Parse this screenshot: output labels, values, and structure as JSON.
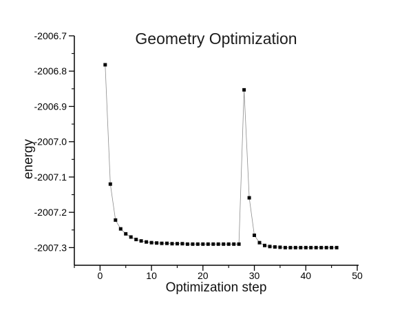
{
  "chart_data": {
    "type": "line",
    "title": "Geometry Optimization",
    "xlabel": "Optimization step",
    "ylabel": "energy",
    "xlim": [
      -5,
      50
    ],
    "ylim": [
      -2007.35,
      -2006.7
    ],
    "grid": false,
    "legend": "none",
    "marker": "filled-square",
    "x_major_ticks": [
      {
        "value": 0,
        "label": "0"
      },
      {
        "value": 10,
        "label": "10"
      },
      {
        "value": 20,
        "label": "20"
      },
      {
        "value": 30,
        "label": "30"
      },
      {
        "value": 40,
        "label": "40"
      },
      {
        "value": 50,
        "label": "50"
      }
    ],
    "x_minor_ticks": [
      -5,
      5,
      15,
      25,
      35,
      45
    ],
    "y_major_ticks": [
      {
        "value": -2006.7,
        "label": "-2006.7"
      },
      {
        "value": -2006.8,
        "label": "-2006.8"
      },
      {
        "value": -2006.9,
        "label": "-2006.9"
      },
      {
        "value": -2007.0,
        "label": "-2007.0"
      },
      {
        "value": -2007.1,
        "label": "-2007.1"
      },
      {
        "value": -2007.2,
        "label": "-2007.2"
      },
      {
        "value": -2007.3,
        "label": "-2007.3"
      }
    ],
    "y_minor_ticks": [
      -2006.75,
      -2006.85,
      -2006.95,
      -2007.05,
      -2007.15,
      -2007.25
    ],
    "series": [
      {
        "name": "energy",
        "x": [
          1,
          2,
          3,
          4,
          5,
          6,
          7,
          8,
          9,
          10,
          11,
          12,
          13,
          14,
          15,
          16,
          17,
          18,
          19,
          20,
          21,
          22,
          23,
          24,
          25,
          26,
          27,
          28,
          29,
          30,
          31,
          32,
          33,
          34,
          35,
          36,
          37,
          38,
          39,
          40,
          41,
          42,
          43,
          44,
          45,
          46
        ],
        "values": [
          -2006.782,
          -2007.12,
          -2007.222,
          -2007.247,
          -2007.261,
          -2007.27,
          -2007.277,
          -2007.281,
          -2007.284,
          -2007.286,
          -2007.287,
          -2007.288,
          -2007.288,
          -2007.289,
          -2007.289,
          -2007.289,
          -2007.29,
          -2007.29,
          -2007.29,
          -2007.29,
          -2007.29,
          -2007.29,
          -2007.29,
          -2007.29,
          -2007.29,
          -2007.29,
          -2007.29,
          -2006.853,
          -2007.159,
          -2007.265,
          -2007.286,
          -2007.294,
          -2007.297,
          -2007.298,
          -2007.299,
          -2007.3,
          -2007.3,
          -2007.3,
          -2007.3,
          -2007.3,
          -2007.3,
          -2007.3,
          -2007.3,
          -2007.3,
          -2007.3,
          -2007.3
        ]
      }
    ],
    "colors": {
      "marker": "#0a0a0a",
      "line": "#8c8c8c",
      "axis": "#000000",
      "text": "#000000",
      "background": "#ffffff"
    }
  }
}
